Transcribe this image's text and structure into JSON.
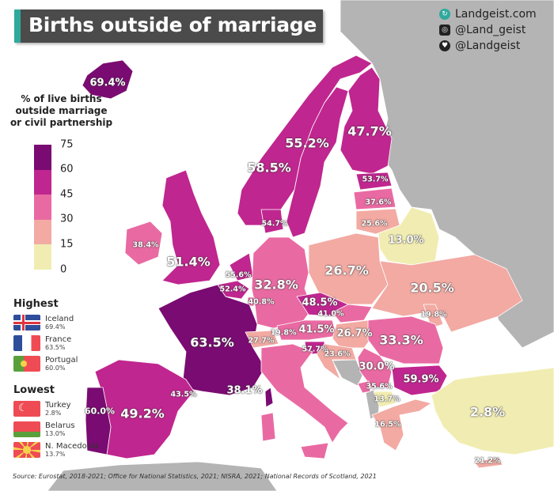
{
  "header": {
    "title": "Births outside of marriage"
  },
  "social": {
    "website": "Landgeist.com",
    "instagram": "@Land_geist",
    "twitter": "@Landgeist"
  },
  "legend": {
    "title_lines": [
      "% of live births",
      "outside marriage",
      "or civil partnership"
    ],
    "ticks": [
      "75",
      "60",
      "45",
      "30",
      "15",
      "0"
    ],
    "colors": {
      "0-15": "#f1edb2",
      "15-30": "#f2aaa3",
      "30-45": "#e96aa2",
      "45-60": "#c0268f",
      "60-75": "#7a0b72",
      "no-data": "#b4b4b4"
    }
  },
  "highest": {
    "heading": "Highest",
    "items": [
      {
        "country": "Iceland",
        "value": "69.4%"
      },
      {
        "country": "France",
        "value": "63.5%"
      },
      {
        "country": "Portugal",
        "value": "60.0%"
      }
    ]
  },
  "lowest": {
    "heading": "Lowest",
    "items": [
      {
        "country": "Turkey",
        "value": "2.8%"
      },
      {
        "country": "Belarus",
        "value": "13.0%"
      },
      {
        "country": "N. Macedonia",
        "value": "13.7%"
      }
    ]
  },
  "map": {
    "labels": {
      "iceland": "69.4%",
      "norway": "58.5%",
      "sweden": "55.2%",
      "finland": "47.7%",
      "estonia": "53.7%",
      "latvia": "37.6%",
      "lithuania": "25.6%",
      "denmark": "54.7%",
      "belarus": "13.0%",
      "ireland": "38.4%",
      "uk": "51.4%",
      "netherlands": "55.6%",
      "belgium": "52.4%",
      "luxembourg": "40.8%",
      "germany": "32.8%",
      "poland": "26.7%",
      "ukraine": "20.5%",
      "czechia": "48.5%",
      "slovakia": "41.0%",
      "moldova": "19.8%",
      "france": "63.5%",
      "switzerland": "27.7%",
      "liechtenstein": "19.8%",
      "austria": "41.5%",
      "hungary": "26.7%",
      "romania": "33.3%",
      "slovenia": "57.7%",
      "croatia": "23.6%",
      "serbia": "30.0%",
      "bulgaria": "59.9%",
      "montenegro": "35.6%",
      "north_macedonia": "13.7%",
      "portugal": "60.0%",
      "spain": "49.2%",
      "andorra": "43.5%",
      "italy": "38.1%",
      "greece": "16.5%",
      "turkey": "2.8%",
      "cyprus": "21.2%"
    }
  },
  "source": "Source: Eurostat, 2018-2021; Office for National Statistics, 2021; NISRA, 2021; National Records of Scotland, 2021"
}
